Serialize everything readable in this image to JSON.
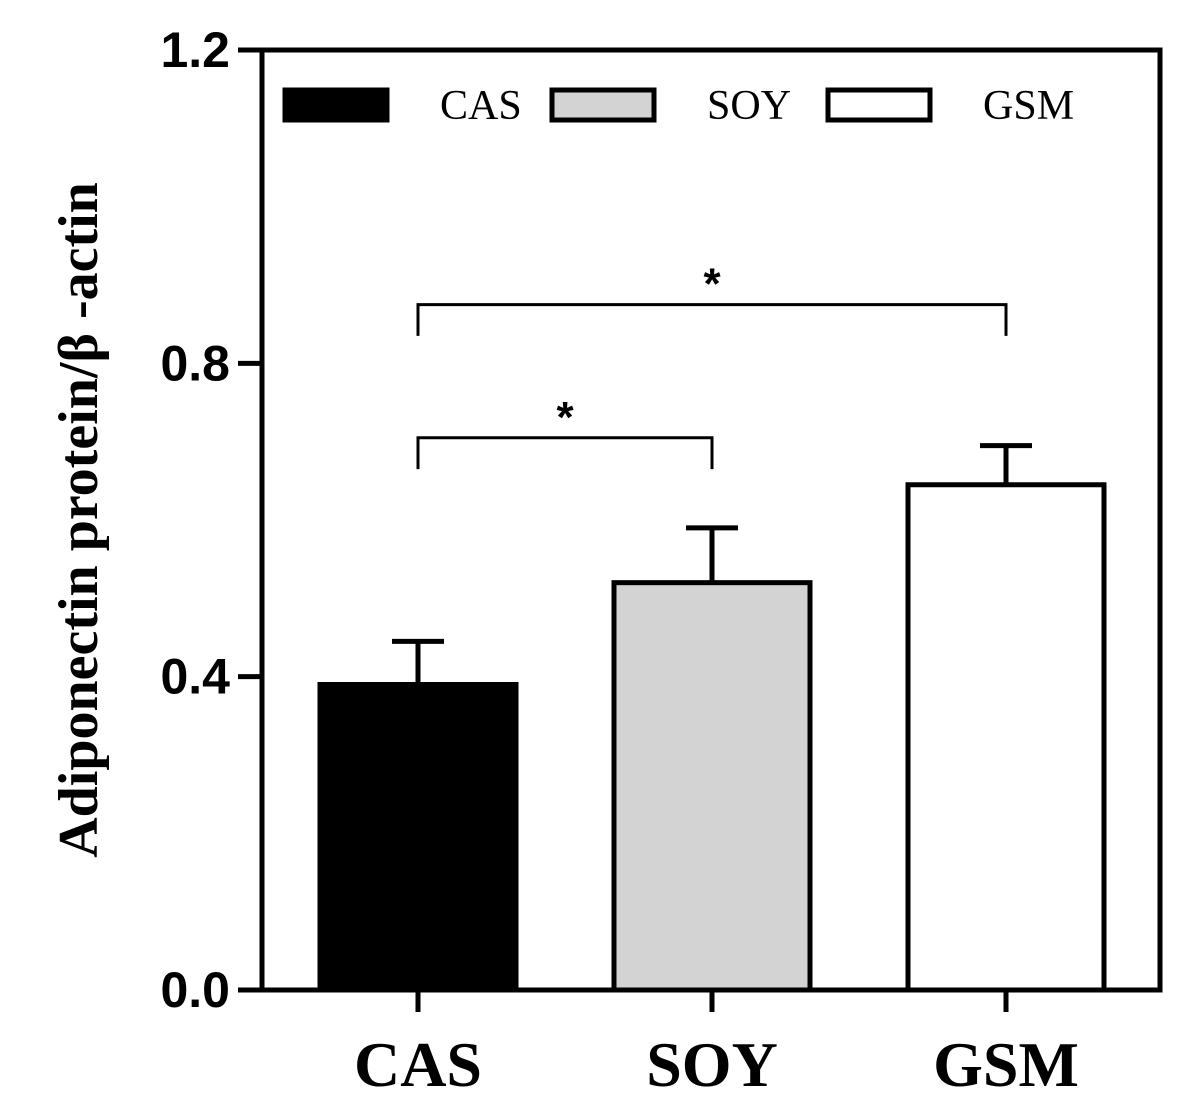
{
  "chart_data": {
    "type": "bar",
    "ylabel": "Adiponectin protein/β -actin",
    "xlabel": "",
    "ylim": [
      0,
      1.2
    ],
    "yticks": [
      "0.0",
      "0.4",
      "0.8",
      "1.2"
    ],
    "yticks_values": [
      0,
      0.4,
      0.8,
      1.2
    ],
    "categories": [
      "CAS",
      "SOY",
      "GSM"
    ],
    "values": [
      0.39,
      0.52,
      0.645
    ],
    "errors": [
      0.055,
      0.07,
      0.05
    ],
    "colors": [
      "#000000",
      "#d3d3d3",
      "#ffffff"
    ],
    "legend": {
      "placement": "top",
      "entries": [
        {
          "label": "CAS",
          "color": "#000000"
        },
        {
          "label": "SOY",
          "color": "#d3d3d3"
        },
        {
          "label": "GSM",
          "color": "#ffffff"
        }
      ]
    },
    "significance": [
      {
        "from": "CAS",
        "to": "SOY",
        "label": "*"
      },
      {
        "from": "CAS",
        "to": "GSM",
        "label": "*"
      }
    ],
    "grid": false
  }
}
